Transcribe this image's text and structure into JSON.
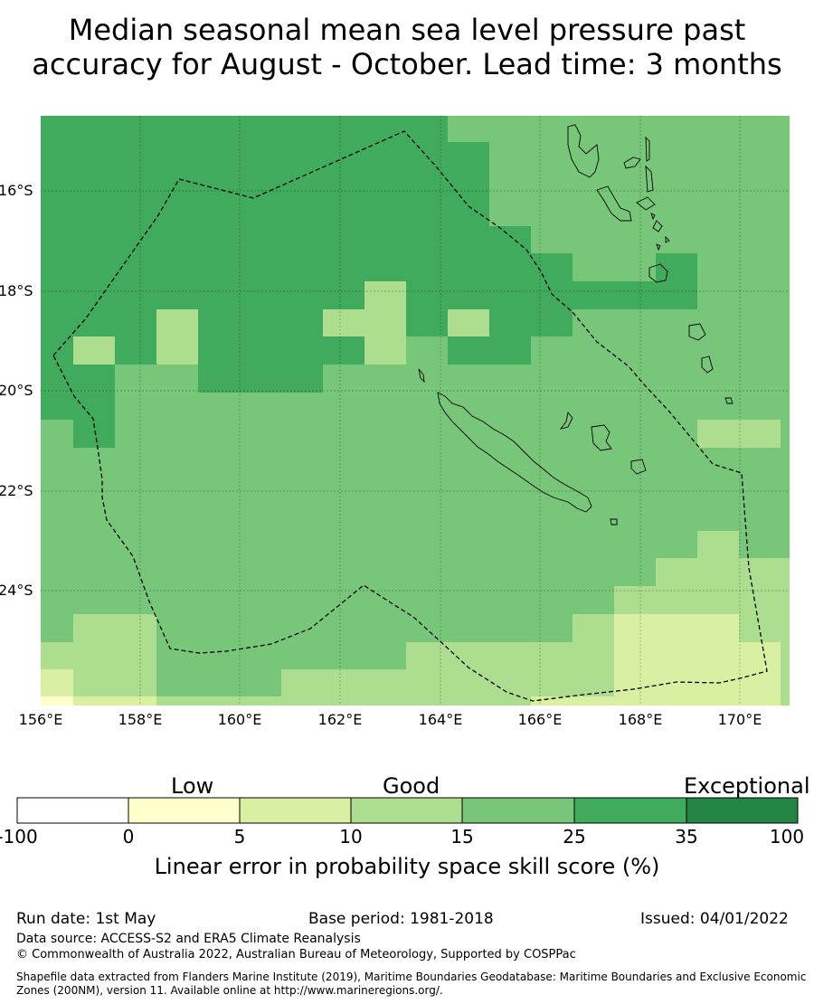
{
  "title_line1": "Median seasonal mean sea level pressure past",
  "title_line2": "accuracy for August - October. Lead time: 3 months",
  "map": {
    "lat_labels": [
      "16°S",
      "18°S",
      "20°S",
      "22°S",
      "24°S"
    ],
    "lon_labels": [
      "156°E",
      "158°E",
      "160°E",
      "162°E",
      "164°E",
      "166°E",
      "168°E",
      "170°E"
    ],
    "region": "New Caledonia EEZ"
  },
  "legend": {
    "categories": [
      "Low",
      "Good",
      "Exceptional"
    ],
    "ticks": [
      "-100",
      "0",
      "5",
      "10",
      "15",
      "25",
      "35",
      "100"
    ],
    "colors": [
      "#ffffff",
      "#ffffcc",
      "#d9f0a3",
      "#addd8e",
      "#78c679",
      "#41ab5d",
      "#238443"
    ],
    "title": "Linear error in probability space skill score (%)"
  },
  "footer": {
    "run_date": "Run date: 1st May",
    "base_period": "Base period: 1981-2018",
    "issued": "Issued: 04/01/2022",
    "data_source": "Data source: ACCESS-S2 and ERA5 Climate Reanalysis",
    "copyright": "© Commonwealth of Australia 2022, Australian Bureau of Meteorology, Supported by COSPPac",
    "shapefile_line1": "Shapefile data extracted from Flanders Marine Institute (2019), Maritime Boundaries Geodatabase: Maritime Boundaries and Exclusive Economic",
    "shapefile_line2": "Zones (200NM), version 11. Available online at http://www.marineregions.org/."
  }
}
